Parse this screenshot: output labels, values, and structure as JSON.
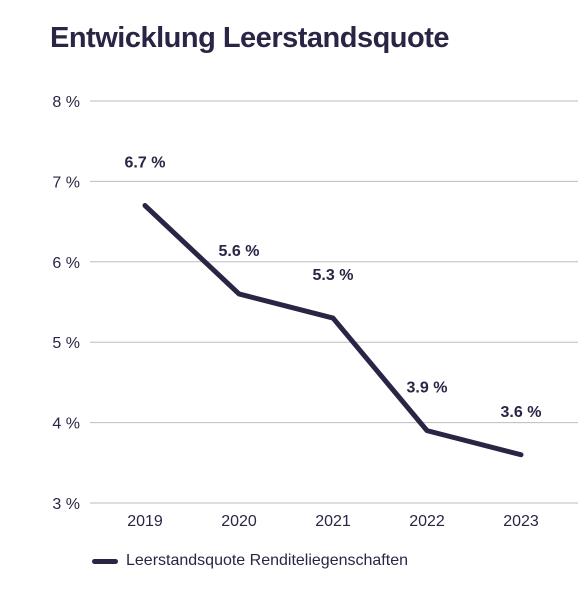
{
  "colors": {
    "line": "#2a2545",
    "grid": "#bdbdbd",
    "text": "#2a2545"
  },
  "chart_data": {
    "type": "line",
    "title": "Entwicklung Leerstandsquote",
    "categories": [
      "2019",
      "2020",
      "2021",
      "2022",
      "2023"
    ],
    "series": [
      {
        "name": "Leerstandsquote Renditeliegenschaften",
        "values": [
          6.7,
          5.6,
          5.3,
          3.9,
          3.6
        ]
      }
    ],
    "data_labels": [
      "6.7 %",
      "5.6 %",
      "5.3 %",
      "3.9 %",
      "3.6 %"
    ],
    "yticks": [
      3,
      4,
      5,
      6,
      7,
      8
    ],
    "ytick_labels": [
      "3 %",
      "4 %",
      "5 %",
      "6 %",
      "7 %",
      "8 %"
    ],
    "ylim": [
      3,
      8
    ],
    "xlabel": "",
    "ylabel": "",
    "grid": true,
    "legend_position": "bottom-left"
  }
}
